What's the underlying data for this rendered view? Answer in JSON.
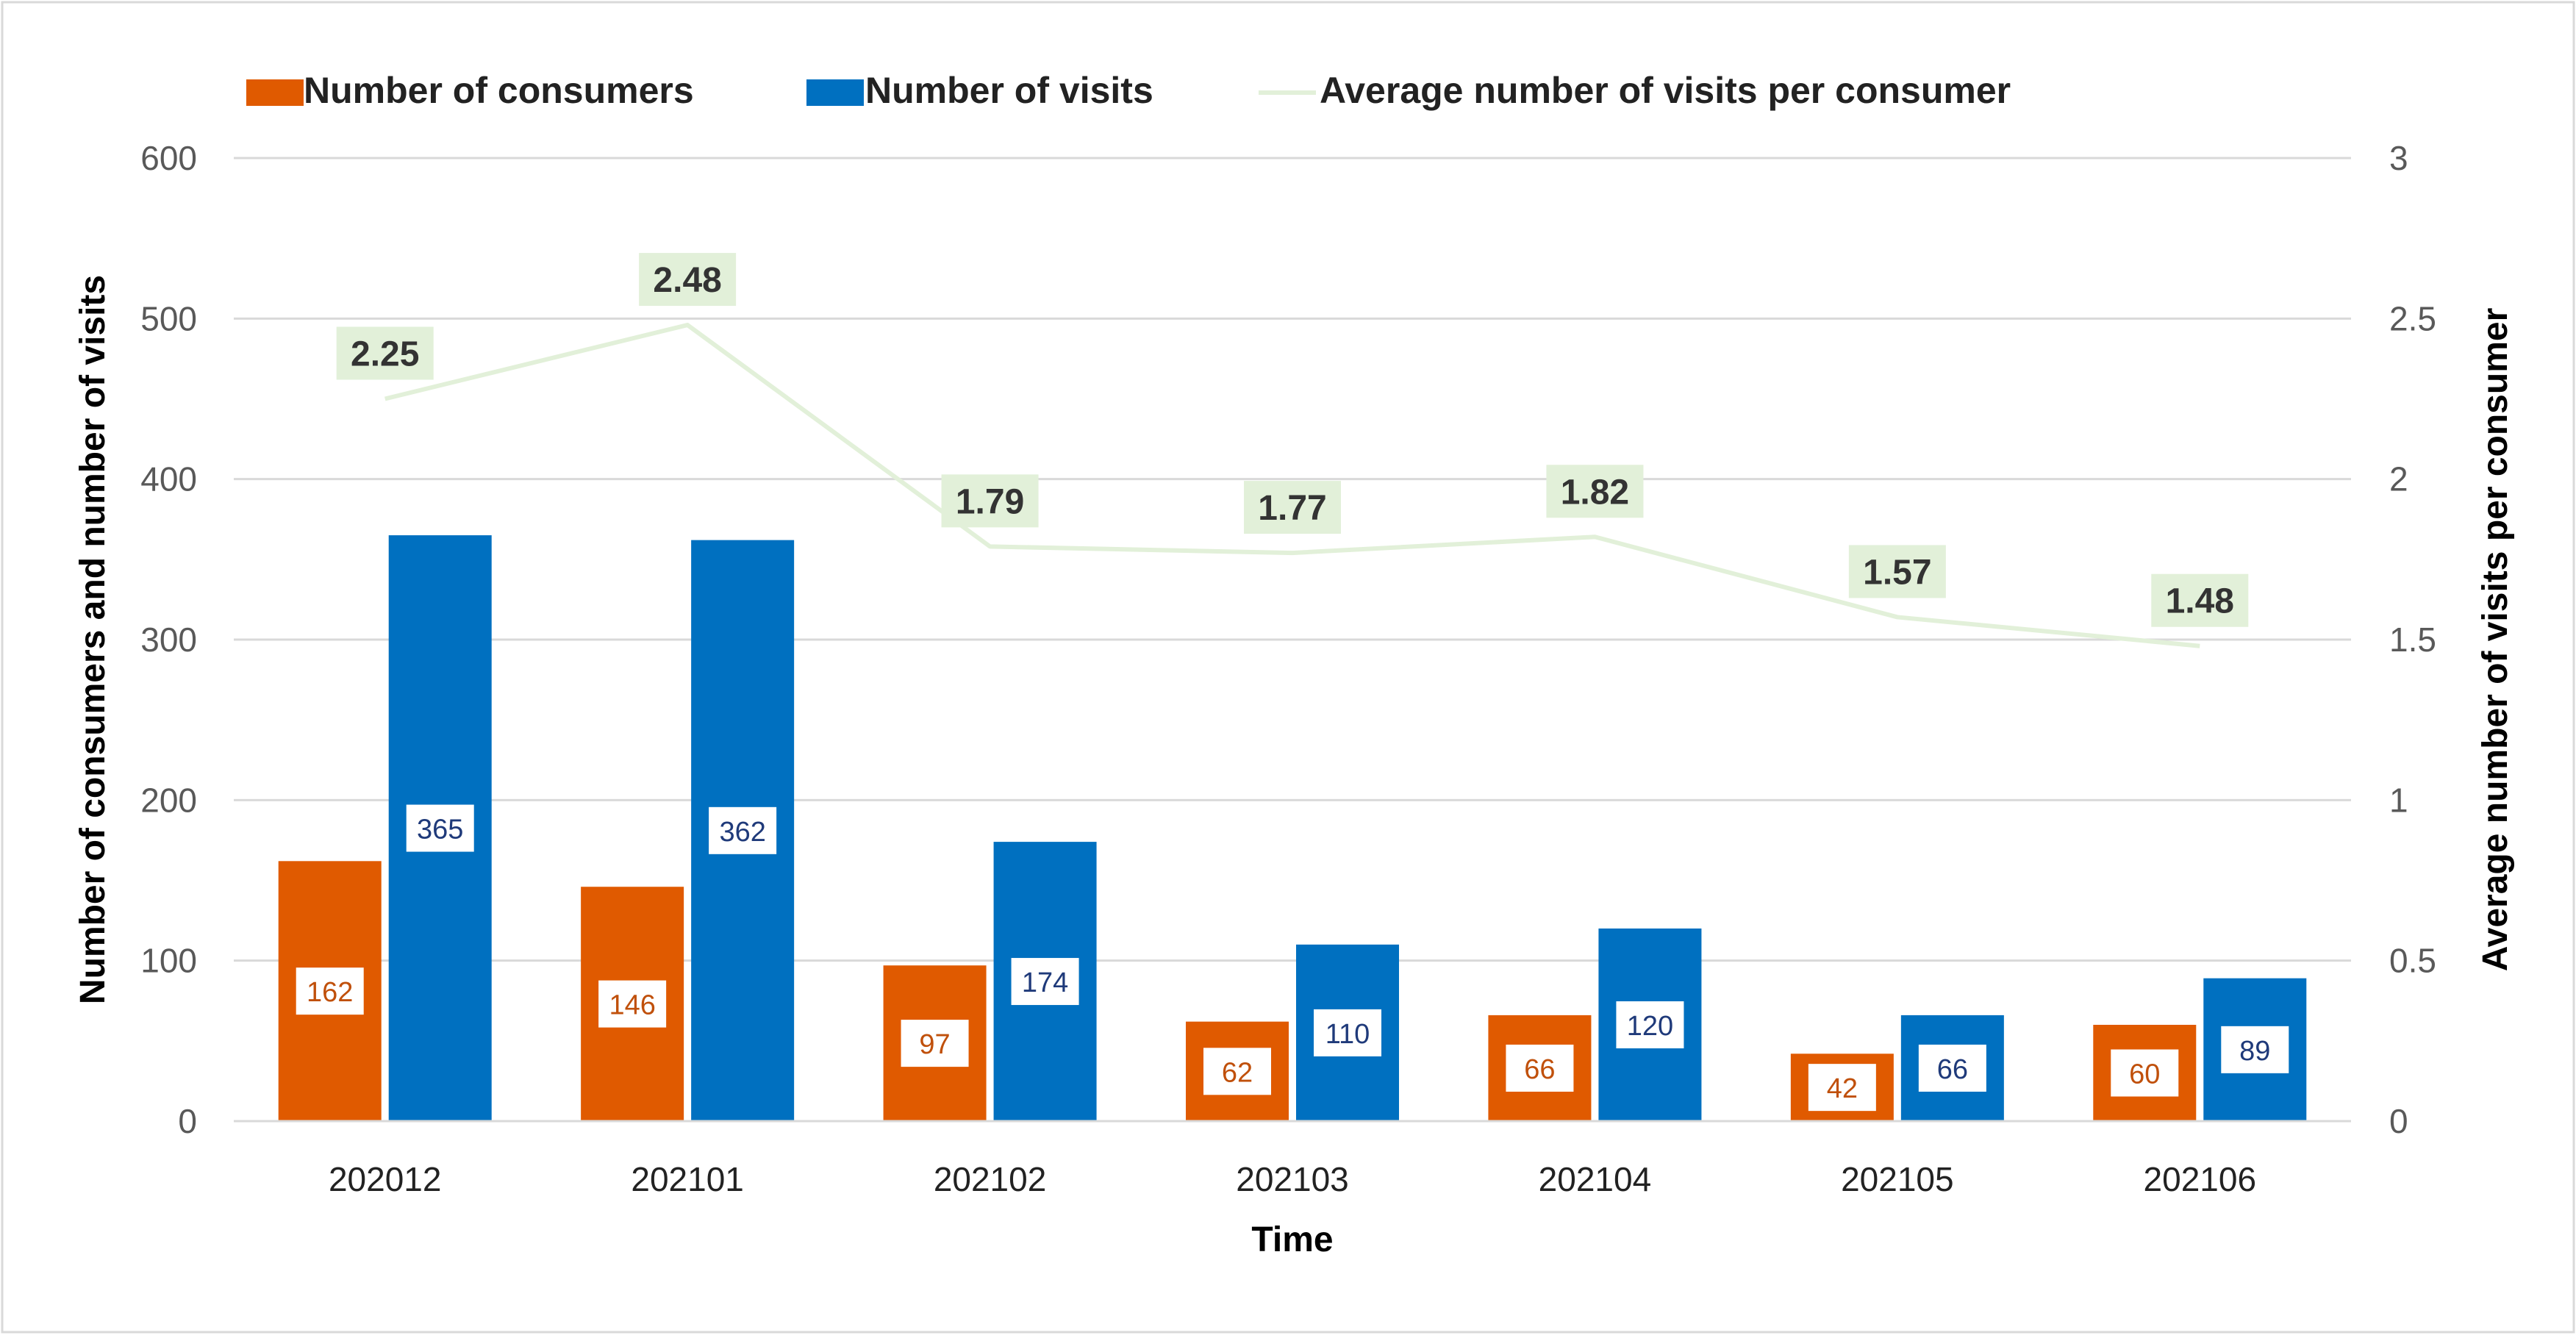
{
  "chart_data": {
    "type": "bar",
    "title": "",
    "xlabel": "Time",
    "ylabel": "Number of consumers and number of visits",
    "y2label": "Average number of visits per consumer",
    "categories": [
      "202012",
      "202101",
      "202102",
      "202103",
      "202104",
      "202105",
      "202106"
    ],
    "series": [
      {
        "name": "Number of consumers",
        "type": "bar",
        "axis": "left",
        "color": "#E05A00",
        "label_color": "#C0500B",
        "values": [
          162,
          146,
          97,
          62,
          66,
          42,
          60
        ]
      },
      {
        "name": "Number of visits",
        "type": "bar",
        "axis": "left",
        "color": "#0070C0",
        "label_color": "#1F3A7A",
        "values": [
          365,
          362,
          174,
          110,
          120,
          66,
          89
        ]
      },
      {
        "name": "Average number of visits per consumer",
        "type": "line",
        "axis": "right",
        "color": "#E2F0D9",
        "label_bg": "#E2F0D9",
        "label_color": "#333333",
        "values": [
          2.25,
          2.48,
          1.79,
          1.77,
          1.82,
          1.57,
          1.48
        ]
      }
    ],
    "ylim": [
      0,
      600
    ],
    "yticks": [
      0,
      100,
      200,
      300,
      400,
      500,
      600
    ],
    "y2lim": [
      0,
      3
    ],
    "y2ticks": [
      "0",
      "0.5",
      "1",
      "1.5",
      "2",
      "2.5",
      "3"
    ],
    "grid": true,
    "legend_position": "top"
  }
}
